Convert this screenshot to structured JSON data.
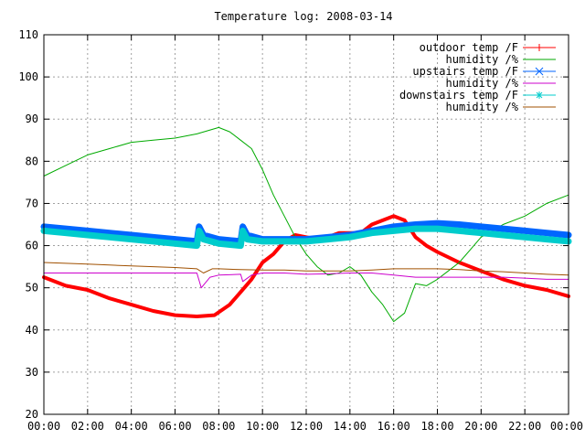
{
  "chart_data": {
    "type": "line",
    "title": "Temperature log: 2008-03-14",
    "xlabel": "",
    "ylabel": "",
    "ylim": [
      20,
      110
    ],
    "xlim": [
      0,
      24
    ],
    "yticks": [
      20,
      30,
      40,
      50,
      60,
      70,
      80,
      90,
      100,
      110
    ],
    "xticks": [
      {
        "v": 0,
        "label": "00:00"
      },
      {
        "v": 2,
        "label": "02:00"
      },
      {
        "v": 4,
        "label": "04:00"
      },
      {
        "v": 6,
        "label": "06:00"
      },
      {
        "v": 8,
        "label": "08:00"
      },
      {
        "v": 10,
        "label": "10:00"
      },
      {
        "v": 12,
        "label": "12:00"
      },
      {
        "v": 14,
        "label": "14:00"
      },
      {
        "v": 16,
        "label": "16:00"
      },
      {
        "v": 18,
        "label": "18:00"
      },
      {
        "v": 20,
        "label": "20:00"
      },
      {
        "v": 22,
        "label": "22:00"
      },
      {
        "v": 24,
        "label": "00:00"
      }
    ],
    "grid": true,
    "legend_position": "top-right",
    "series": [
      {
        "name": "outdoor temp /F",
        "color": "#ff0000",
        "marker": "plus",
        "width": 4,
        "points": [
          [
            0,
            52.5
          ],
          [
            1,
            50.5
          ],
          [
            2,
            49.5
          ],
          [
            3,
            47.5
          ],
          [
            4,
            46
          ],
          [
            5,
            44.5
          ],
          [
            6,
            43.5
          ],
          [
            7,
            43.2
          ],
          [
            7.8,
            43.5
          ],
          [
            8.5,
            46
          ],
          [
            9,
            49
          ],
          [
            9.5,
            52
          ],
          [
            10,
            56
          ],
          [
            10.5,
            58
          ],
          [
            11,
            61
          ],
          [
            11.5,
            62.5
          ],
          [
            12,
            62
          ],
          [
            12.5,
            61.5
          ],
          [
            13,
            62
          ],
          [
            13.5,
            63
          ],
          [
            14,
            63
          ],
          [
            14.5,
            63
          ],
          [
            15,
            65
          ],
          [
            15.5,
            66
          ],
          [
            16,
            67
          ],
          [
            16.5,
            66
          ],
          [
            17,
            62
          ],
          [
            17.5,
            60
          ],
          [
            18,
            58.5
          ],
          [
            19,
            56
          ],
          [
            20,
            54
          ],
          [
            21,
            52
          ],
          [
            22,
            50.5
          ],
          [
            23,
            49.5
          ],
          [
            24,
            48
          ]
        ]
      },
      {
        "name": "humidity /%",
        "color": "#00aa00",
        "marker": "none",
        "width": 1,
        "points": [
          [
            0,
            76.5
          ],
          [
            1,
            79
          ],
          [
            2,
            81.5
          ],
          [
            3,
            83
          ],
          [
            4,
            84.5
          ],
          [
            5,
            85
          ],
          [
            6,
            85.5
          ],
          [
            7,
            86.5
          ],
          [
            8,
            88
          ],
          [
            8.5,
            87
          ],
          [
            9,
            85
          ],
          [
            9.5,
            83
          ],
          [
            10,
            78
          ],
          [
            10.5,
            72
          ],
          [
            11,
            67
          ],
          [
            11.5,
            62
          ],
          [
            12,
            58
          ],
          [
            12.5,
            55
          ],
          [
            13,
            53
          ],
          [
            13.5,
            53.5
          ],
          [
            14,
            55
          ],
          [
            14.5,
            53
          ],
          [
            15,
            49
          ],
          [
            15.5,
            46
          ],
          [
            16,
            42
          ],
          [
            16.5,
            44
          ],
          [
            17,
            51
          ],
          [
            17.5,
            50.5
          ],
          [
            18,
            52
          ],
          [
            18.5,
            54
          ],
          [
            19,
            56
          ],
          [
            19.5,
            59
          ],
          [
            20,
            62
          ],
          [
            21,
            65
          ],
          [
            22,
            67
          ],
          [
            23,
            70
          ],
          [
            24,
            72
          ]
        ]
      },
      {
        "name": "upstairs temp /F",
        "color": "#0066ff",
        "marker": "x",
        "width": 7,
        "points": [
          [
            0,
            64.5
          ],
          [
            1,
            64
          ],
          [
            2,
            63.5
          ],
          [
            3,
            63
          ],
          [
            4,
            62.5
          ],
          [
            5,
            62
          ],
          [
            6,
            61.5
          ],
          [
            7,
            61
          ],
          [
            7.1,
            64.5
          ],
          [
            7.3,
            62.5
          ],
          [
            8,
            61.5
          ],
          [
            9,
            61
          ],
          [
            9.1,
            64.5
          ],
          [
            9.3,
            62.5
          ],
          [
            10,
            61.5
          ],
          [
            11,
            61.5
          ],
          [
            12,
            61.5
          ],
          [
            13,
            62
          ],
          [
            14,
            62.5
          ],
          [
            15,
            63.5
          ],
          [
            16,
            64.5
          ],
          [
            17,
            65
          ],
          [
            18,
            65.3
          ],
          [
            19,
            65
          ],
          [
            20,
            64.5
          ],
          [
            21,
            64
          ],
          [
            22,
            63.5
          ],
          [
            23,
            63
          ],
          [
            24,
            62.5
          ]
        ]
      },
      {
        "name": "humidity /%",
        "color": "#cc00cc",
        "marker": "none",
        "width": 1,
        "points": [
          [
            0,
            53.5
          ],
          [
            1,
            53.5
          ],
          [
            2,
            53.5
          ],
          [
            3,
            53.5
          ],
          [
            4,
            53.5
          ],
          [
            5,
            53.5
          ],
          [
            6,
            53.5
          ],
          [
            7,
            53.5
          ],
          [
            7.2,
            50
          ],
          [
            7.6,
            52.5
          ],
          [
            8,
            53
          ],
          [
            9,
            53.2
          ],
          [
            9.1,
            51.5
          ],
          [
            9.5,
            53
          ],
          [
            10,
            53.5
          ],
          [
            11,
            53.5
          ],
          [
            12,
            53.2
          ],
          [
            13,
            53.3
          ],
          [
            14,
            53.5
          ],
          [
            15,
            53.5
          ],
          [
            16,
            53
          ],
          [
            17,
            52.5
          ],
          [
            18,
            52.5
          ],
          [
            19,
            52.5
          ],
          [
            20,
            52.5
          ],
          [
            21,
            52.5
          ],
          [
            22,
            52.3
          ],
          [
            23,
            52
          ],
          [
            24,
            52
          ]
        ]
      },
      {
        "name": "downstairs temp /F",
        "color": "#00cccc",
        "marker": "star",
        "width": 7,
        "points": [
          [
            0,
            63.5
          ],
          [
            1,
            63
          ],
          [
            2,
            62.5
          ],
          [
            3,
            62
          ],
          [
            4,
            61.5
          ],
          [
            5,
            61
          ],
          [
            6,
            60.5
          ],
          [
            7,
            60
          ],
          [
            7.1,
            63.5
          ],
          [
            7.3,
            61.5
          ],
          [
            8,
            60.5
          ],
          [
            9,
            60
          ],
          [
            9.1,
            63.5
          ],
          [
            9.3,
            61.5
          ],
          [
            10,
            61
          ],
          [
            11,
            61
          ],
          [
            12,
            61
          ],
          [
            13,
            61.5
          ],
          [
            14,
            62
          ],
          [
            14.5,
            62.5
          ],
          [
            15,
            63
          ],
          [
            16,
            63.5
          ],
          [
            17,
            64
          ],
          [
            18,
            64
          ],
          [
            19,
            63.5
          ],
          [
            20,
            63
          ],
          [
            21,
            62.5
          ],
          [
            22,
            62
          ],
          [
            23,
            61.5
          ],
          [
            24,
            61
          ]
        ]
      },
      {
        "name": "humidity /%",
        "color": "#a05000",
        "marker": "none",
        "width": 1,
        "points": [
          [
            0,
            56
          ],
          [
            1,
            55.8
          ],
          [
            2,
            55.6
          ],
          [
            3,
            55.4
          ],
          [
            4,
            55.2
          ],
          [
            5,
            55
          ],
          [
            6,
            54.8
          ],
          [
            7,
            54.5
          ],
          [
            7.3,
            53.5
          ],
          [
            7.7,
            54.5
          ],
          [
            8,
            54.5
          ],
          [
            9,
            54.3
          ],
          [
            10,
            54.2
          ],
          [
            11,
            54.2
          ],
          [
            12,
            54
          ],
          [
            13,
            54
          ],
          [
            14,
            54
          ],
          [
            15,
            54.2
          ],
          [
            16,
            54.5
          ],
          [
            17,
            54.5
          ],
          [
            18,
            54.5
          ],
          [
            19,
            54.3
          ],
          [
            20,
            54
          ],
          [
            21,
            53.8
          ],
          [
            22,
            53.5
          ],
          [
            23,
            53.2
          ],
          [
            24,
            53
          ]
        ]
      }
    ]
  }
}
